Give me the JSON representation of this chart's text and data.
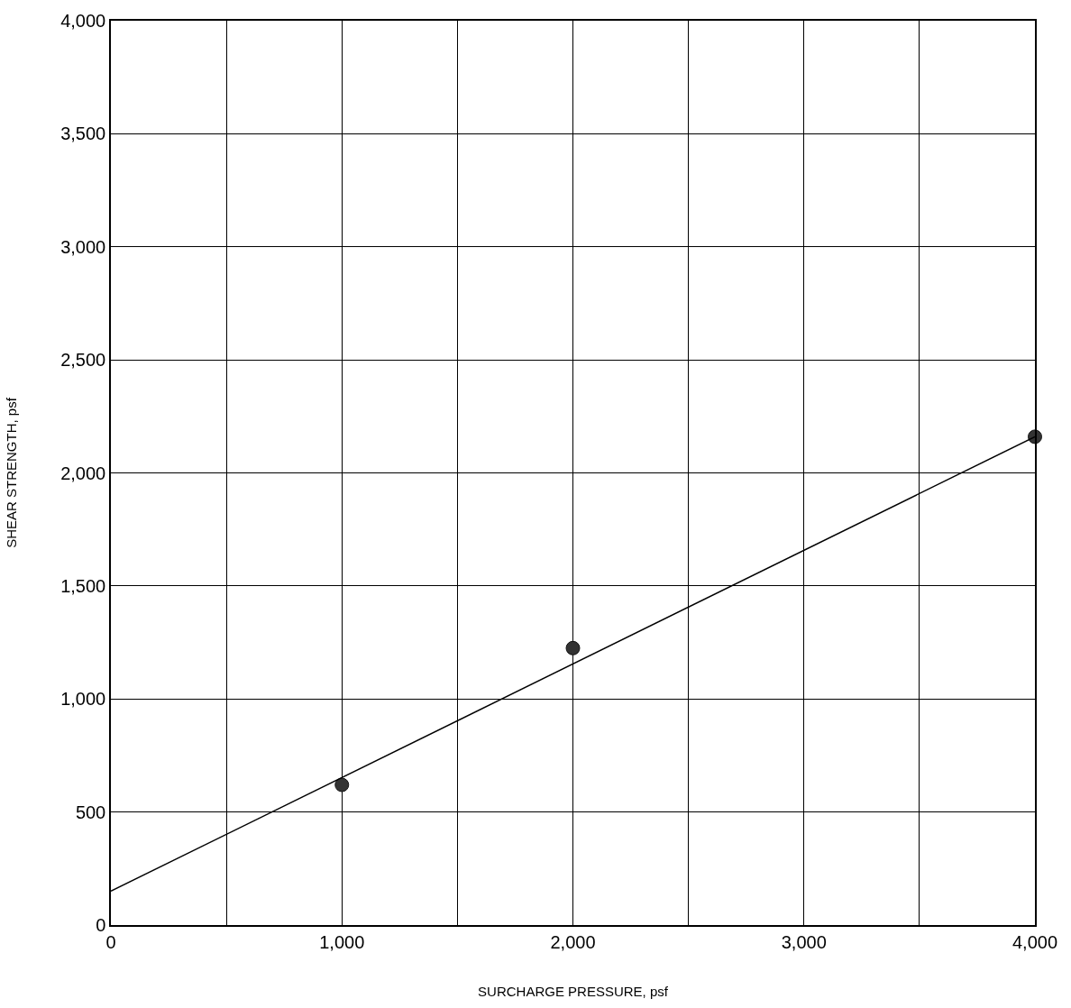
{
  "chart_data": {
    "type": "scatter",
    "xlabel": "SURCHARGE PRESSURE, psf",
    "ylabel": "SHEAR STRENGTH, psf",
    "series": [
      {
        "color": "#333333",
        "marker": "circle",
        "x": [
          1000,
          2000,
          4000
        ],
        "values": [
          620,
          1225,
          2160
        ]
      },
      {
        "type": "line",
        "color": "#000000",
        "marker": "none",
        "line_style": "solid",
        "x": [
          0,
          4000
        ],
        "values": [
          150,
          2160
        ]
      }
    ],
    "xlim": [
      0,
      4000
    ],
    "ylim": [
      0,
      4000
    ],
    "xticks": [
      {
        "value": 0,
        "label": "0"
      },
      {
        "value": 500,
        "label": null
      },
      {
        "value": 1000,
        "label": "1,000"
      },
      {
        "value": 1500,
        "label": null
      },
      {
        "value": 2000,
        "label": "2,000"
      },
      {
        "value": 2500,
        "label": null
      },
      {
        "value": 3000,
        "label": "3,000"
      },
      {
        "value": 3500,
        "label": null
      },
      {
        "value": 4000,
        "label": "4,000"
      }
    ],
    "yticks": [
      {
        "value": 0,
        "label": "0"
      },
      {
        "value": 500,
        "label": "500"
      },
      {
        "value": 1000,
        "label": "1,000"
      },
      {
        "value": 1500,
        "label": "1,500"
      },
      {
        "value": 2000,
        "label": "2,000"
      },
      {
        "value": 2500,
        "label": "2,500"
      },
      {
        "value": 3000,
        "label": "3,000"
      },
      {
        "value": 3500,
        "label": "3,500"
      },
      {
        "value": 4000,
        "label": "4,000"
      }
    ],
    "grid": true
  }
}
